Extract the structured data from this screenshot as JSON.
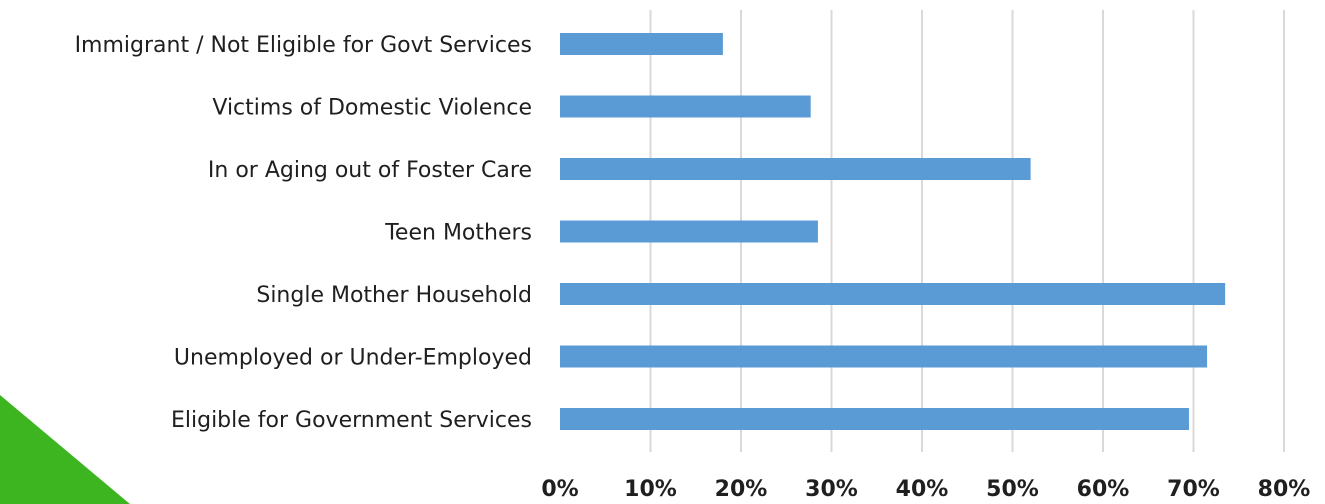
{
  "chart_data": {
    "type": "bar",
    "orientation": "horizontal",
    "categories": [
      "Immigrant / Not Eligible for Govt Services",
      "Victims of Domestic Violence",
      "In or Aging out of Foster Care",
      "Teen Mothers",
      "Single Mother Household",
      "Unemployed or Under-Employed",
      "Eligible for Government Services"
    ],
    "values": [
      18,
      27.7,
      52,
      28.5,
      73.5,
      71.5,
      69.5
    ],
    "value_unit": "%",
    "xlim": [
      0,
      80
    ],
    "x_ticks": [
      0,
      10,
      20,
      30,
      40,
      50,
      60,
      70,
      80
    ],
    "x_tick_labels": [
      "0%",
      "10%",
      "20%",
      "30%",
      "40%",
      "50%",
      "60%",
      "70%",
      "80%"
    ],
    "grid": "vertical",
    "legend": "none",
    "title": "",
    "xlabel": "",
    "ylabel": ""
  },
  "colors": {
    "bar": "#5b9bd5",
    "grid": "#d9d9d9",
    "text": "#1f1f1f",
    "corner_accent": "#3cb521"
  }
}
